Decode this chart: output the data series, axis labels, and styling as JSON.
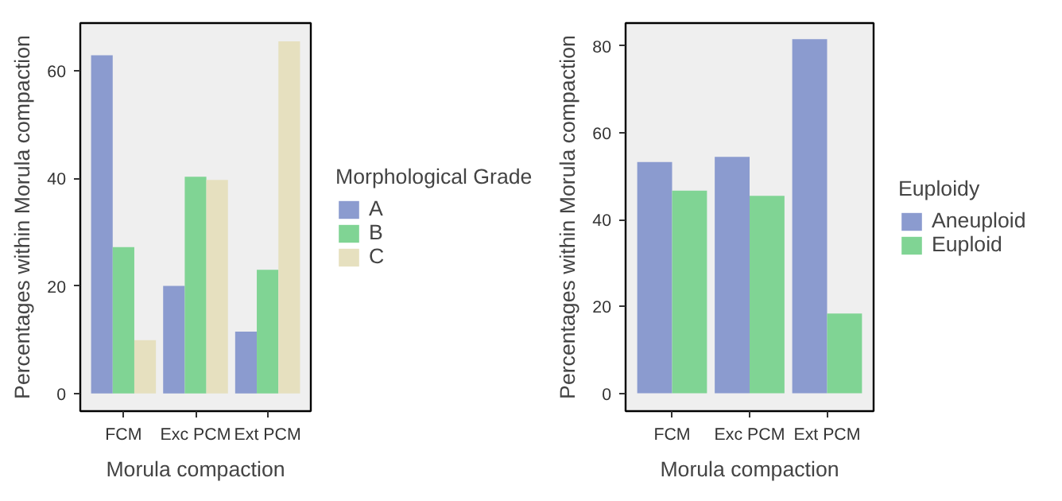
{
  "chart_data": [
    {
      "type": "bar",
      "xlabel": "Morula compaction",
      "ylabel": "Percentages within Morula compaction",
      "legend_title": "Morphological Grade",
      "categories": [
        "FCM",
        "Exc PCM",
        "Ext PCM"
      ],
      "series": [
        {
          "name": "A",
          "color": "#8b9bcf",
          "values": [
            62.9,
            20.0,
            11.5
          ]
        },
        {
          "name": "B",
          "color": "#80d494",
          "values": [
            27.2,
            40.3,
            23.0
          ]
        },
        {
          "name": "C",
          "color": "#e6e0bf",
          "values": [
            9.9,
            39.7,
            65.5
          ]
        }
      ],
      "ylim": [
        -3.3,
        68.9
      ],
      "yticks": [
        0,
        20,
        40,
        60
      ],
      "grid": false,
      "legend": "right"
    },
    {
      "type": "bar",
      "xlabel": "Morula compaction",
      "ylabel": "Percentages within Morula compaction",
      "legend_title": "Euploidy",
      "categories": [
        "FCM",
        "Exc PCM",
        "Ext PCM"
      ],
      "series": [
        {
          "name": "Aneuploid",
          "color": "#8b9bcf",
          "values": [
            53.3,
            54.5,
            81.6
          ]
        },
        {
          "name": "Euploid",
          "color": "#80d494",
          "values": [
            46.7,
            45.5,
            18.4
          ]
        }
      ],
      "ylim": [
        -4.1,
        85.3
      ],
      "yticks": [
        0,
        20,
        40,
        60,
        80
      ],
      "grid": false,
      "legend": "right"
    }
  ]
}
